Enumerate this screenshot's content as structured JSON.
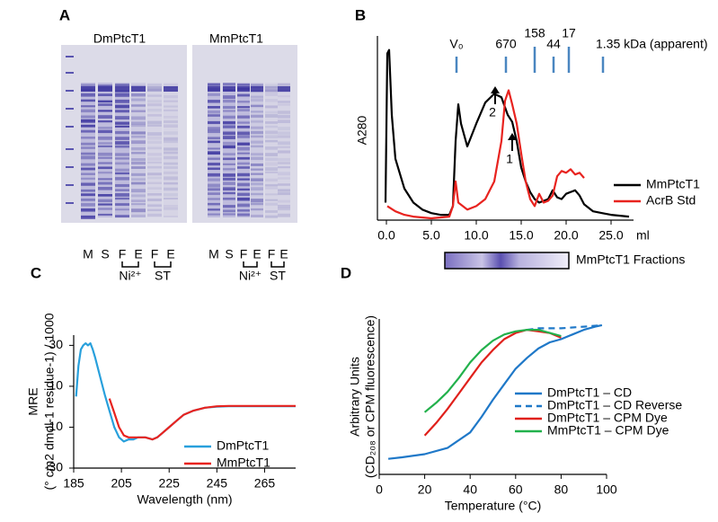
{
  "gel_figure": {
    "panel": "A",
    "gels": [
      {
        "title": "DmPtcT1",
        "lanes": [
          "M",
          "S",
          "F",
          "E",
          "F",
          "E"
        ],
        "groups": [
          "Ni²⁺",
          "ST"
        ]
      },
      {
        "title": "MmPtcT1",
        "lanes": [
          "M",
          "S",
          "F",
          "E",
          "F",
          "E"
        ],
        "groups": [
          "Ni²⁺",
          "ST"
        ]
      }
    ]
  },
  "chart_data": [
    {
      "type": "line",
      "panel": "B",
      "y_label": [
        "A280"
      ],
      "x_label": "ml",
      "xlim": [
        -1,
        27.5
      ],
      "ylim": [
        0,
        105
      ],
      "xticks": [
        {
          "value": 0,
          "label": "0.0"
        },
        {
          "value": 5,
          "label": "5.0"
        },
        {
          "value": 10,
          "label": "10.0"
        },
        {
          "value": 15,
          "label": "15.0"
        },
        {
          "value": 20,
          "label": "20.0"
        },
        {
          "value": 25,
          "label": "25.0"
        }
      ],
      "markers": [
        {
          "label": "V₀",
          "x": 7.8
        },
        {
          "label": "670",
          "x": 13.3
        },
        {
          "label": "158",
          "x": 16.5
        },
        {
          "label": "44",
          "x": 18.6
        },
        {
          "label": "17",
          "x": 20.3
        },
        {
          "label": "1.35 kDa (apparent)",
          "x": 24.1
        }
      ],
      "annotations": [
        {
          "text": "2",
          "x": 12.1
        },
        {
          "text": "1",
          "x": 14.0
        }
      ],
      "strip_label": "MmPtcT1 Fractions",
      "series": [
        {
          "name": "MmPtcT1",
          "color": "#000000",
          "x": [
            -0.1,
            0.1,
            0.3,
            0.6,
            1,
            2,
            3,
            4,
            5,
            6,
            7,
            7.4,
            7.7,
            8,
            8.3,
            9,
            10,
            11,
            12,
            12.8,
            13.5,
            14,
            14.5,
            15,
            15.5,
            16,
            16.5,
            17,
            18,
            18.5,
            19,
            19.5,
            20,
            21,
            21.5,
            22,
            23,
            24,
            25,
            27
          ],
          "values": [
            10,
            95,
            97,
            60,
            35,
            18,
            10,
            6,
            4,
            3,
            3,
            8,
            45,
            66,
            55,
            42,
            55,
            67,
            72,
            70,
            60,
            56,
            45,
            30,
            22,
            16,
            12,
            10,
            12,
            17,
            13,
            12,
            15,
            17,
            14,
            9,
            5,
            4,
            3,
            2
          ]
        },
        {
          "name": "AcrB Std",
          "color": "#e8231f",
          "x": [
            0.1,
            1,
            2,
            3,
            5,
            7,
            7.4,
            7.7,
            8,
            9,
            10,
            11,
            12,
            12.8,
            13.2,
            13.6,
            14,
            14.5,
            15,
            15.5,
            16,
            16.5,
            17,
            17.5,
            18,
            18.5,
            19,
            19.5,
            20,
            20.5,
            21,
            21.5,
            22
          ],
          "values": [
            8,
            5,
            3,
            2,
            1,
            2,
            8,
            22,
            10,
            6,
            8,
            12,
            22,
            45,
            68,
            74,
            66,
            55,
            38,
            22,
            12,
            8,
            15,
            10,
            11,
            14,
            25,
            28,
            27,
            29,
            26,
            27,
            24
          ]
        }
      ]
    },
    {
      "type": "line",
      "panel": "C",
      "y_label": [
        "MRE",
        "(° cm2 dmol-1 residue-1) / 1000"
      ],
      "x_label": "Wavelength (nm)",
      "xlim": [
        185,
        278
      ],
      "ylim": [
        -30,
        35
      ],
      "xticks": [
        185,
        205,
        225,
        245,
        265
      ],
      "yticks": [
        30,
        10,
        -10,
        -30
      ],
      "series": [
        {
          "name": "DmPtcT1",
          "color": "#28a0dc",
          "x": [
            186,
            187,
            188,
            189,
            190,
            191,
            192,
            193,
            194,
            196,
            198,
            200,
            202,
            204,
            206,
            208,
            210,
            212,
            215,
            218,
            220,
            222,
            225,
            228,
            231,
            235,
            240,
            245,
            250,
            260,
            270,
            278
          ],
          "values": [
            5,
            20,
            28,
            30,
            31,
            30,
            31,
            28,
            24,
            15,
            6,
            -2,
            -10,
            -15,
            -17,
            -16,
            -16,
            -15,
            -15,
            -16,
            -15,
            -13,
            -10,
            -7,
            -4,
            -2,
            -0.5,
            0,
            0.2,
            0.2,
            0.2,
            0.2
          ]
        },
        {
          "name": "MmPtcT1",
          "color": "#e8231f",
          "x": [
            200,
            202,
            204,
            206,
            208,
            210,
            212,
            215,
            218,
            220,
            222,
            225,
            228,
            231,
            235,
            240,
            245,
            250,
            260,
            270,
            278
          ],
          "values": [
            4,
            -3,
            -10,
            -14,
            -15,
            -15,
            -15,
            -15,
            -16,
            -15,
            -13,
            -10,
            -7,
            -4,
            -2,
            -0.5,
            0.2,
            0.4,
            0.4,
            0.4,
            0.4
          ]
        }
      ]
    },
    {
      "type": "line",
      "panel": "D",
      "y_label": [
        "Arbitrary Units",
        "(CD₂₀₈ or CPM fluorescence)"
      ],
      "x_label": "Temperature (°C)",
      "xlim": [
        0,
        100
      ],
      "ylim": [
        0,
        100
      ],
      "xticks": [
        0,
        20,
        40,
        60,
        80,
        100
      ],
      "series": [
        {
          "name": "DmPtcT1 – CD",
          "color": "#1f78c8",
          "x": [
            4,
            10,
            20,
            30,
            40,
            45,
            50,
            55,
            60,
            65,
            70,
            75,
            80,
            85,
            90,
            95,
            98
          ],
          "values": [
            10,
            11,
            13,
            17,
            27,
            37,
            48,
            58,
            68,
            75,
            81,
            85,
            87,
            90,
            93,
            95,
            96
          ]
        },
        {
          "name": "DmPtcT1 – CD Reverse",
          "color": "#1f78c8",
          "dashed": true,
          "x": [
            65,
            70,
            80,
            90,
            98
          ],
          "values": [
            93,
            94,
            94,
            95,
            96
          ]
        },
        {
          "name": "DmPtcT1 – CPM Dye",
          "color": "#e0201b",
          "x": [
            20,
            25,
            30,
            35,
            40,
            45,
            50,
            55,
            60,
            65,
            70,
            75,
            80
          ],
          "values": [
            25,
            33,
            42,
            52,
            62,
            72,
            80,
            87,
            91,
            93,
            92,
            91,
            88
          ]
        },
        {
          "name": "MmPtcT1 – CPM Dye",
          "color": "#22b14c",
          "x": [
            20,
            25,
            30,
            35,
            40,
            45,
            50,
            55,
            60,
            65,
            70,
            75,
            80
          ],
          "values": [
            40,
            46,
            53,
            62,
            72,
            80,
            86,
            90,
            92,
            93,
            93,
            91,
            89
          ]
        }
      ]
    }
  ]
}
